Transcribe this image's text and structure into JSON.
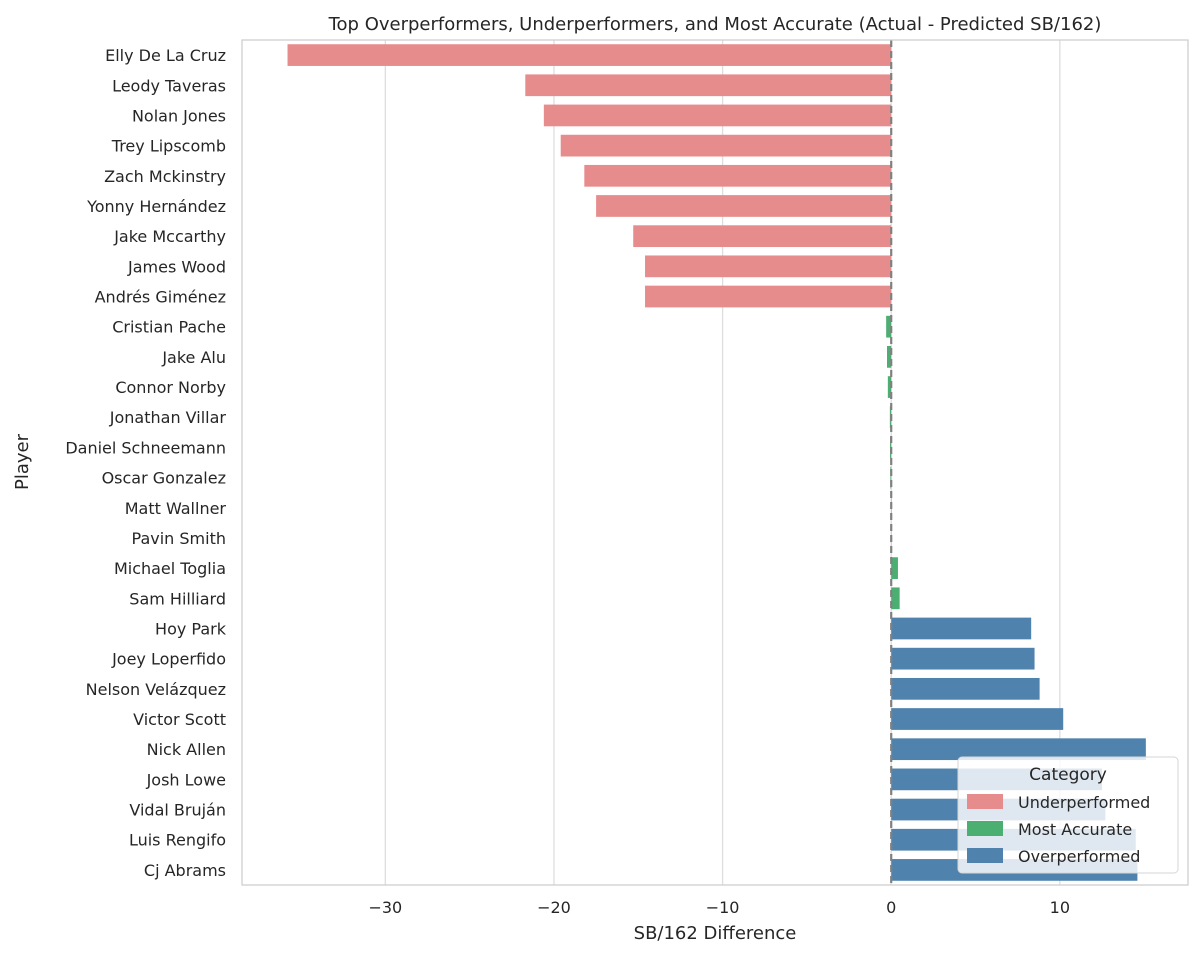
{
  "chart_data": {
    "type": "bar",
    "orientation": "horizontal",
    "title": "Top Overperformers, Underperformers, and Most Accurate (Actual - Predicted SB/162)",
    "xlabel": "SB/162 Difference",
    "ylabel": "Player",
    "xlim": [
      -38.5,
      17.6
    ],
    "xticks": [
      -30,
      -20,
      -10,
      0,
      10
    ],
    "xtick_labels": [
      "−30",
      "−20",
      "−10",
      "0",
      "10"
    ],
    "grid": "vertical",
    "reference_line": {
      "x": 0,
      "style": "dashed",
      "color": "#808080"
    },
    "legend": {
      "title": "Category",
      "placement": "bottom-right",
      "entries": [
        {
          "name": "Underperformed",
          "color": "#e78c8d"
        },
        {
          "name": "Most Accurate",
          "color": "#4caf72"
        },
        {
          "name": "Overperformed",
          "color": "#4f82ad"
        }
      ]
    },
    "categories": [
      "Elly De La Cruz",
      "Leody Taveras",
      "Nolan Jones",
      "Trey Lipscomb",
      "Zach Mckinstry",
      "Yonny Hernández",
      "Jake Mccarthy",
      "James Wood",
      "Andrés Giménez",
      "Cristian Pache",
      "Jake Alu",
      "Connor Norby",
      "Jonathan Villar",
      "Daniel Schneemann",
      "Oscar Gonzalez",
      "Matt Wallner",
      "Pavin Smith",
      "Michael Toglia",
      "Sam Hilliard",
      "Hoy Park",
      "Joey Loperfido",
      "Nelson Velázquez",
      "Victor Scott",
      "Nick Allen",
      "Josh Lowe",
      "Vidal Bruján",
      "Luis Rengifo",
      "Cj Abrams"
    ],
    "values": [
      -35.8,
      -21.7,
      -20.6,
      -19.6,
      -18.2,
      -17.5,
      -15.3,
      -14.6,
      -14.6,
      -0.3,
      -0.25,
      -0.2,
      -0.08,
      -0.07,
      -0.05,
      0.02,
      0.01,
      0.4,
      0.5,
      8.3,
      8.5,
      8.8,
      10.2,
      15.1,
      12.5,
      12.7,
      14.5,
      14.6
    ],
    "series_category": [
      "Underperformed",
      "Underperformed",
      "Underperformed",
      "Underperformed",
      "Underperformed",
      "Underperformed",
      "Underperformed",
      "Underperformed",
      "Underperformed",
      "Most Accurate",
      "Most Accurate",
      "Most Accurate",
      "Most Accurate",
      "Most Accurate",
      "Most Accurate",
      "Most Accurate",
      "Most Accurate",
      "Most Accurate",
      "Most Accurate",
      "Overperformed",
      "Overperformed",
      "Overperformed",
      "Overperformed",
      "Overperformed",
      "Overperformed",
      "Overperformed",
      "Overperformed",
      "Overperformed"
    ]
  }
}
